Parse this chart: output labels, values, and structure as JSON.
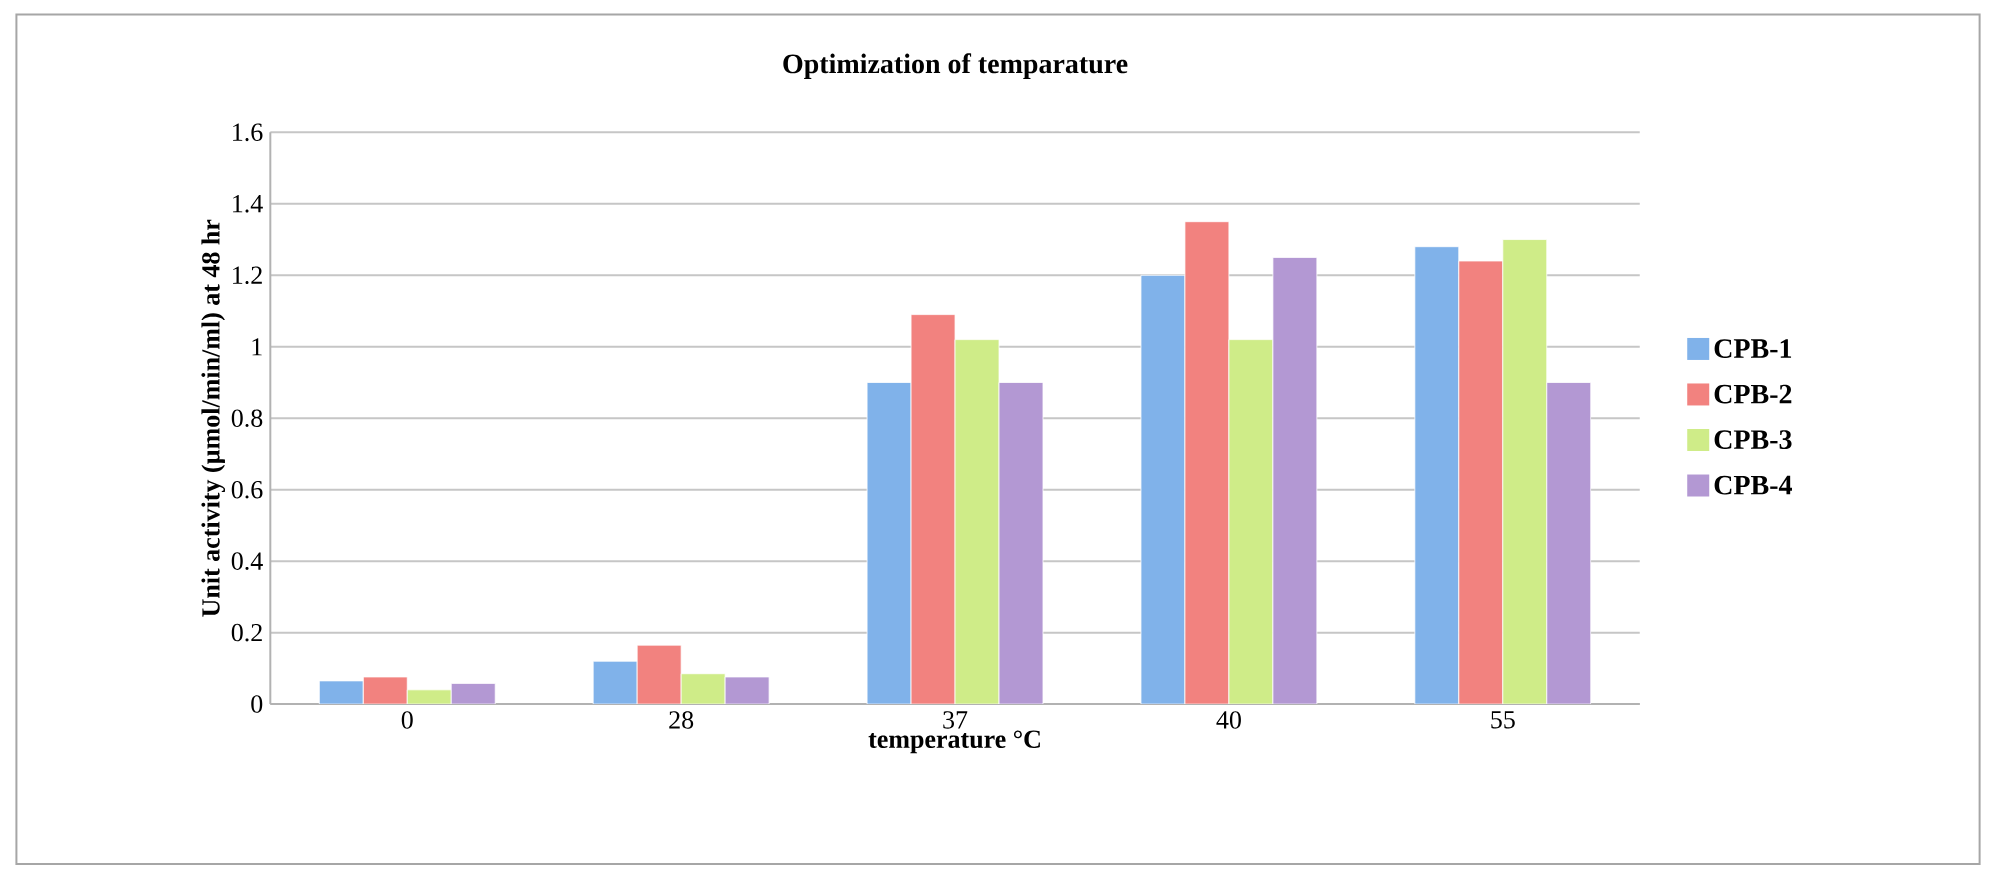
{
  "chart_data": {
    "type": "bar",
    "title": "Optimization of temparature",
    "xlabel": "temperature °C",
    "ylabel": "Unit activity (µmol/min/ml) at 48 hr",
    "categories": [
      "0",
      "28",
      "37",
      "40",
      "55"
    ],
    "series": [
      {
        "name": "CPB-1",
        "color": "#80b2ea",
        "values": [
          0.065,
          0.12,
          0.9,
          1.2,
          1.28
        ]
      },
      {
        "name": "CPB-2",
        "color": "#f2827f",
        "values": [
          0.076,
          0.165,
          1.09,
          1.35,
          1.24
        ]
      },
      {
        "name": "CPB-3",
        "color": "#cfec88",
        "values": [
          0.04,
          0.085,
          1.02,
          1.02,
          1.3
        ]
      },
      {
        "name": "CPB-4",
        "color": "#b398d3",
        "values": [
          0.058,
          0.076,
          0.9,
          1.25,
          0.9
        ]
      }
    ],
    "ylim": [
      0,
      1.6
    ],
    "yticks": [
      0,
      0.2,
      0.4,
      0.6,
      0.8,
      1,
      1.2,
      1.4,
      1.6
    ],
    "grid": "y",
    "legend": "right"
  }
}
